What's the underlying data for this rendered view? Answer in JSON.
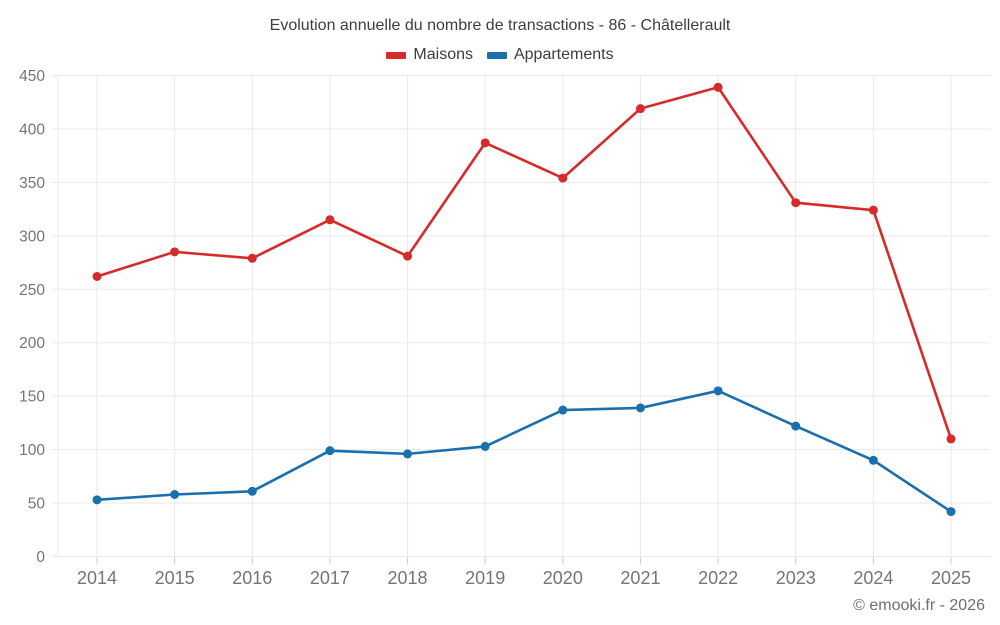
{
  "header": {
    "title": "Evolution annuelle du nombre de transactions - 86 - Châtellerault"
  },
  "legend": {
    "items": [
      {
        "label": "Maisons",
        "color": "#d62b2b"
      },
      {
        "label": "Appartements",
        "color": "#1a70ad"
      }
    ]
  },
  "chart_data": {
    "type": "line",
    "title": "Evolution annuelle du nombre de transactions - 86 - Châtellerault",
    "categories": [
      "2014",
      "2015",
      "2016",
      "2017",
      "2018",
      "2019",
      "2020",
      "2021",
      "2022",
      "2023",
      "2024",
      "2025"
    ],
    "series": [
      {
        "name": "Maisons",
        "color": "#d62b2b",
        "values": [
          262,
          285,
          279,
          315,
          281,
          387,
          354,
          419,
          439,
          331,
          324,
          110
        ]
      },
      {
        "name": "Appartements",
        "color": "#1a70ad",
        "values": [
          53,
          58,
          61,
          99,
          96,
          103,
          137,
          139,
          155,
          122,
          90,
          42
        ]
      }
    ],
    "xlabel": "",
    "ylabel": "",
    "ylim": [
      0,
      450
    ],
    "ytick_step": 50,
    "grid": true,
    "legend_position": "top",
    "marker": "circle"
  },
  "footer": {
    "copyright": "© emooki.fr - 2026"
  },
  "colors": {
    "background": "#ffffff",
    "grid": "#e8e8e8",
    "tick": "#cccccc",
    "axis_label": "#757575",
    "title_text": "#3e3e3e",
    "footer_text": "#6e6e6e"
  }
}
